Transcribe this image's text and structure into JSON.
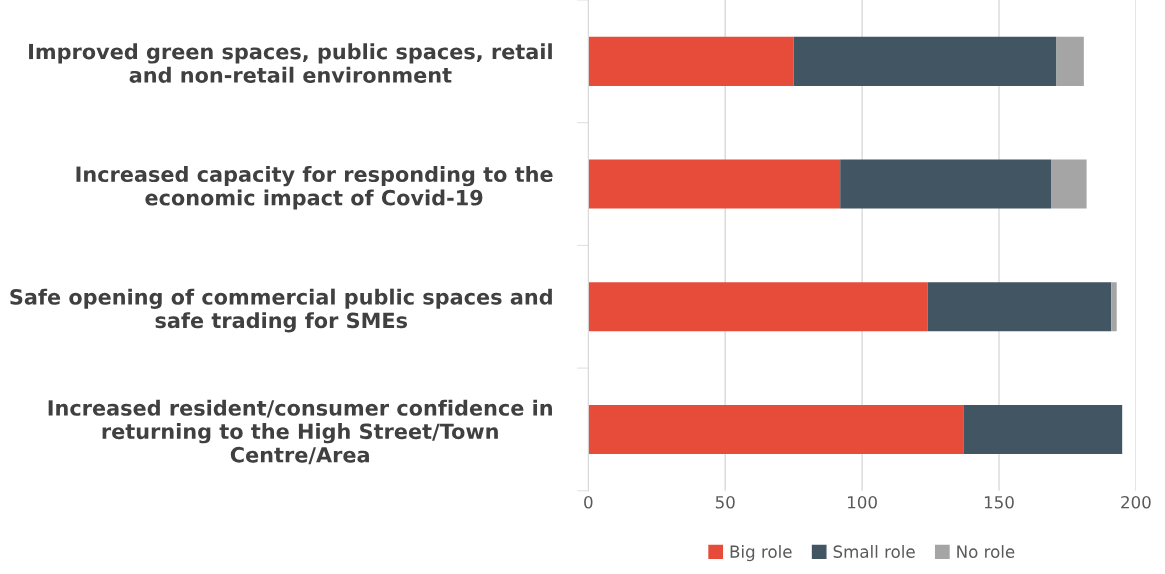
{
  "chart_data": {
    "type": "bar",
    "orientation": "horizontal",
    "stacked": true,
    "categories": [
      "Improved green spaces, public spaces, retail\nand non-retail environment",
      "Increased capacity for responding to the\neconomic impact of Covid-19",
      "Safe opening of commercial public spaces and\nsafe trading for SMEs",
      "Increased resident/consumer confidence in\nreturning to the High Street/Town\nCentre/Area"
    ],
    "series": [
      {
        "name": "Big role",
        "color": "#e74c3a",
        "values": [
          75,
          92,
          124,
          137
        ]
      },
      {
        "name": "Small role",
        "color": "#415563",
        "values": [
          96,
          77,
          67,
          58
        ]
      },
      {
        "name": "No role",
        "color": "#a5a5a5",
        "values": [
          10,
          13,
          2,
          0
        ]
      }
    ],
    "xlim": [
      0,
      200
    ],
    "xticks": [
      0,
      50,
      100,
      150,
      200
    ],
    "grid": "x",
    "legend": "bottom"
  }
}
